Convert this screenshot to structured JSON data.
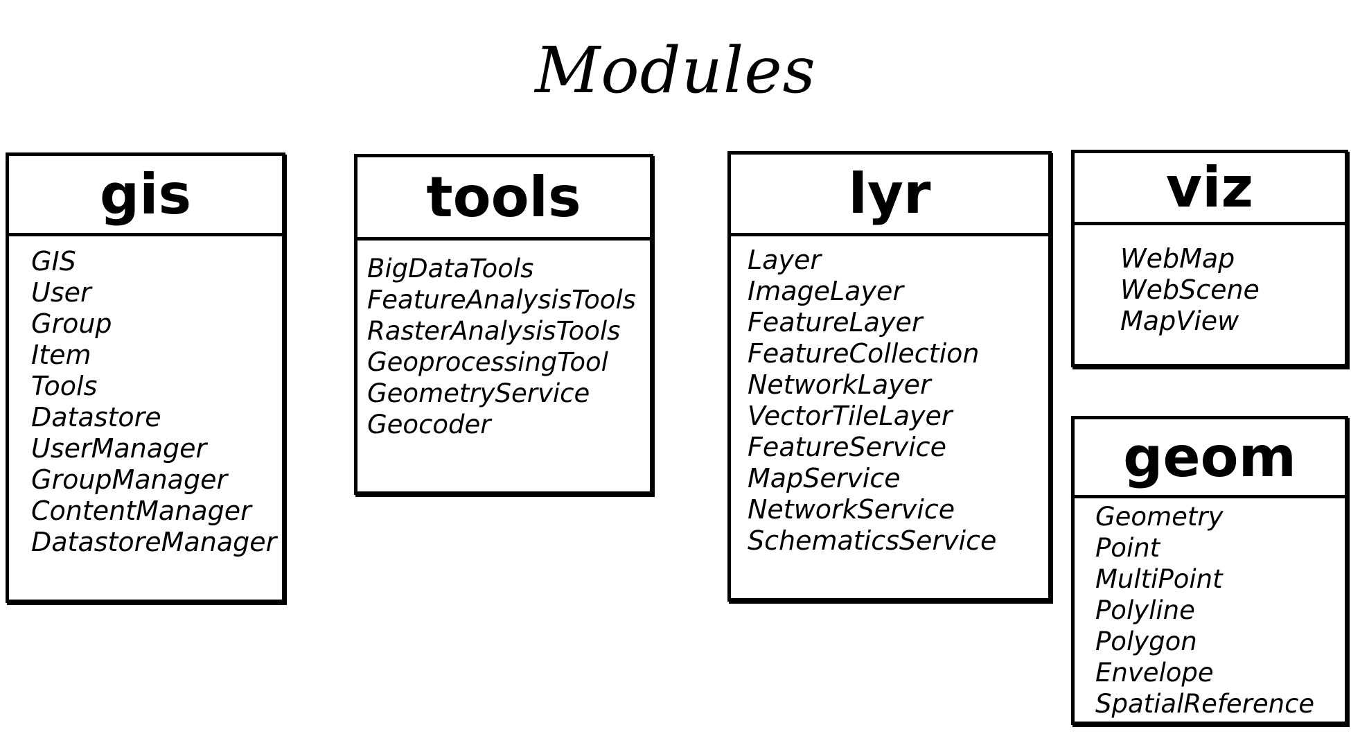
{
  "title": "Modules",
  "modules": [
    {
      "name": "gis",
      "items": [
        "GIS",
        "User",
        "Group",
        "Item",
        "Tools",
        "Datastore",
        "UserManager",
        "GroupManager",
        "ContentManager",
        "DatastoreManager"
      ]
    },
    {
      "name": "tools",
      "items": [
        "BigDataTools",
        "FeatureAnalysisTools",
        "RasterAnalysisTools",
        "GeoprocessingTool",
        "GeometryService",
        "Geocoder"
      ]
    },
    {
      "name": "lyr",
      "items": [
        "Layer",
        "ImageLayer",
        "FeatureLayer",
        "FeatureCollection",
        "NetworkLayer",
        "VectorTileLayer",
        "FeatureService",
        "MapService",
        "NetworkService",
        "SchematicsService"
      ]
    },
    {
      "name": "viz",
      "items": [
        "WebMap",
        "WebScene",
        "MapView"
      ]
    },
    {
      "name": "geom",
      "items": [
        "Geometry",
        "Point",
        "MultiPoint",
        "Polyline",
        "Polygon",
        "Envelope",
        "SpatialReference"
      ]
    }
  ]
}
